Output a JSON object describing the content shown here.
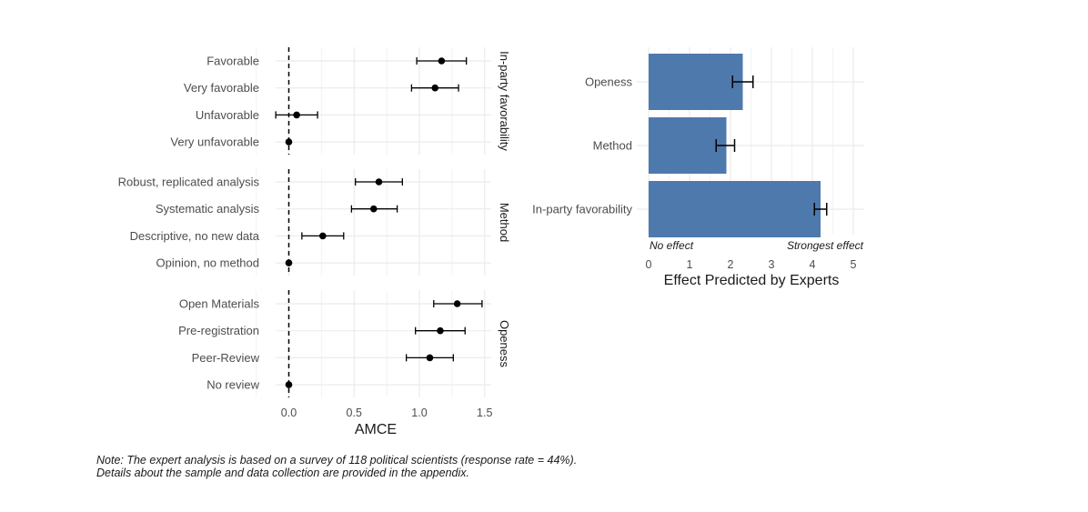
{
  "chart_data": [
    {
      "type": "scatter",
      "xlabel": "AMCE",
      "ylabel": "",
      "xlim": [
        -0.1,
        1.55
      ],
      "xticks": [
        "0.0",
        "0.5",
        "1.0",
        "1.5"
      ],
      "reference_line": 0,
      "grid": true,
      "panels": [
        {
          "strip": "In-party favorability",
          "points": [
            {
              "label": "Favorable",
              "estimate": 1.17,
              "lower": 0.98,
              "upper": 1.36
            },
            {
              "label": "Very favorable",
              "estimate": 1.12,
              "lower": 0.94,
              "upper": 1.3
            },
            {
              "label": "Unfavorable",
              "estimate": 0.06,
              "lower": -0.1,
              "upper": 0.22
            },
            {
              "label": "Very unfavorable",
              "estimate": 0.0,
              "lower": null,
              "upper": null
            }
          ]
        },
        {
          "strip": "Method",
          "points": [
            {
              "label": "Robust, replicated analysis",
              "estimate": 0.69,
              "lower": 0.51,
              "upper": 0.87
            },
            {
              "label": "Systematic analysis",
              "estimate": 0.65,
              "lower": 0.48,
              "upper": 0.83
            },
            {
              "label": "Descriptive, no new data",
              "estimate": 0.26,
              "lower": 0.1,
              "upper": 0.42
            },
            {
              "label": "Opinion, no method",
              "estimate": 0.0,
              "lower": null,
              "upper": null
            }
          ]
        },
        {
          "strip": "Openess",
          "points": [
            {
              "label": "Open Materials",
              "estimate": 1.29,
              "lower": 1.11,
              "upper": 1.48
            },
            {
              "label": "Pre-registration",
              "estimate": 1.16,
              "lower": 0.97,
              "upper": 1.35
            },
            {
              "label": "Peer-Review",
              "estimate": 1.08,
              "lower": 0.9,
              "upper": 1.26
            },
            {
              "label": "No review",
              "estimate": 0.0,
              "lower": null,
              "upper": null
            }
          ]
        }
      ]
    },
    {
      "type": "bar",
      "orientation": "horizontal",
      "categories": [
        "Openess",
        "Method",
        "In-party favorability"
      ],
      "values": [
        2.3,
        1.9,
        4.2
      ],
      "error_lower": [
        2.05,
        1.65,
        4.05
      ],
      "error_upper": [
        2.55,
        2.1,
        4.35
      ],
      "xlabel": "Effect Predicted by Experts",
      "xlim": [
        0,
        5
      ],
      "xticks": [
        "0",
        "1",
        "2",
        "3",
        "4",
        "5"
      ],
      "scale_annotations": {
        "left": "No effect",
        "right": "Strongest effect"
      },
      "bar_color": "#4e79ad",
      "grid": true
    }
  ],
  "note": {
    "line1": "Note: The expert analysis is based on a survey of 118 political scientists (response rate = 44%).",
    "line2": "Details about the sample and data collection are provided in the appendix."
  },
  "colors": {
    "grid": "#ebebeb",
    "text": "#4d4d4d",
    "title": "#1a1a1a",
    "bar": "#4e79ad"
  }
}
